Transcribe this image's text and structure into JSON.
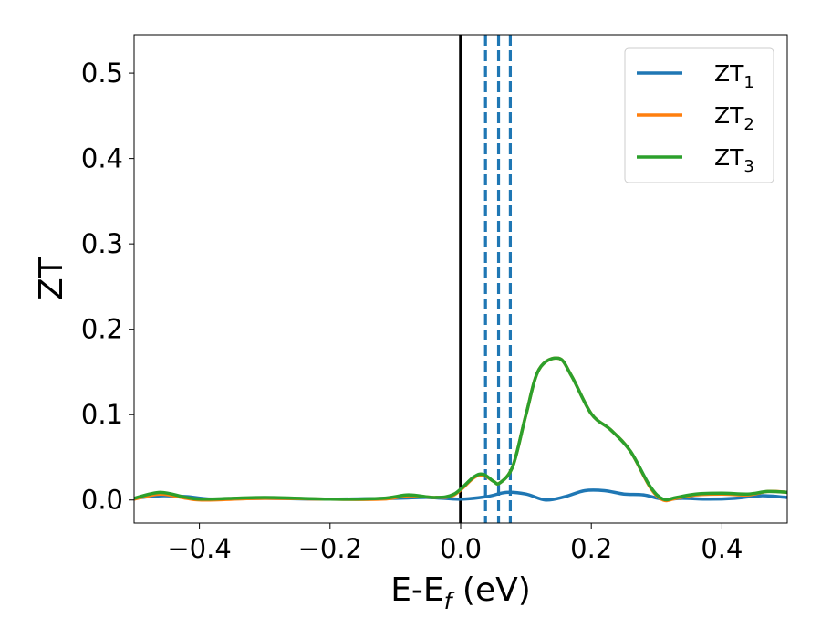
{
  "chart_data": {
    "type": "line",
    "title": "",
    "xlabel": {
      "main": "E-E",
      "sub": "f",
      "tail": " (eV)"
    },
    "ylabel": "ZT",
    "xlim": [
      -0.5,
      0.5
    ],
    "ylim": [
      -0.027,
      0.545
    ],
    "xticks": [
      -0.4,
      -0.2,
      0.0,
      0.2,
      0.4
    ],
    "xtick_labels": [
      "−0.4",
      "−0.2",
      "0.0",
      "0.2",
      "0.4"
    ],
    "yticks": [
      0.0,
      0.1,
      0.2,
      0.3,
      0.4,
      0.5
    ],
    "ytick_labels": [
      "0.0",
      "0.1",
      "0.2",
      "0.3",
      "0.4",
      "0.5"
    ],
    "grid": false,
    "legend_position": "top-right",
    "vertical_lines": [
      {
        "x": 0.0,
        "style": "solid",
        "color": "#000000"
      },
      {
        "x": 0.038,
        "style": "dashed",
        "color": "#1f77b4"
      },
      {
        "x": 0.058,
        "style": "dashed",
        "color": "#1f77b4"
      },
      {
        "x": 0.076,
        "style": "dashed",
        "color": "#1f77b4"
      }
    ],
    "series": [
      {
        "name": "ZT",
        "sub": "1",
        "color": "#1f77b4",
        "x": [
          -0.5,
          -0.46,
          -0.42,
          -0.38,
          -0.3,
          -0.2,
          -0.1,
          -0.05,
          0.0,
          0.04,
          0.07,
          0.1,
          0.13,
          0.16,
          0.19,
          0.22,
          0.25,
          0.28,
          0.31,
          0.34,
          0.38,
          0.42,
          0.46,
          0.5
        ],
        "y": [
          0.002,
          0.005,
          0.004,
          0.001,
          0.002,
          0.001,
          0.002,
          0.003,
          0.001,
          0.004,
          0.009,
          0.007,
          0.0,
          0.004,
          0.011,
          0.011,
          0.007,
          0.006,
          0.001,
          0.002,
          0.001,
          0.002,
          0.005,
          0.003
        ]
      },
      {
        "name": "ZT",
        "sub": "2",
        "color": "#ff7f0e",
        "x": [
          -0.5,
          -0.46,
          -0.42,
          -0.39,
          -0.3,
          -0.2,
          -0.12,
          -0.08,
          -0.04,
          -0.01,
          0.02,
          0.035,
          0.05,
          0.06,
          0.08,
          0.1,
          0.12,
          0.15,
          0.17,
          0.2,
          0.23,
          0.26,
          0.29,
          0.31,
          0.33,
          0.36,
          0.4,
          0.44,
          0.47,
          0.5
        ],
        "y": [
          0.001,
          0.007,
          0.002,
          0.0,
          0.002,
          0.001,
          0.001,
          0.005,
          0.003,
          0.006,
          0.026,
          0.029,
          0.022,
          0.02,
          0.04,
          0.1,
          0.153,
          0.166,
          0.145,
          0.101,
          0.082,
          0.057,
          0.015,
          0.0,
          0.002,
          0.006,
          0.007,
          0.006,
          0.01,
          0.009
        ]
      },
      {
        "name": "ZT",
        "sub": "3",
        "color": "#2ca02c",
        "x": [
          -0.5,
          -0.46,
          -0.42,
          -0.39,
          -0.3,
          -0.2,
          -0.12,
          -0.08,
          -0.04,
          -0.01,
          0.02,
          0.035,
          0.05,
          0.06,
          0.08,
          0.1,
          0.12,
          0.15,
          0.17,
          0.2,
          0.23,
          0.26,
          0.29,
          0.31,
          0.33,
          0.36,
          0.4,
          0.44,
          0.47,
          0.5
        ],
        "y": [
          0.002,
          0.009,
          0.003,
          0.001,
          0.003,
          0.001,
          0.002,
          0.006,
          0.003,
          0.007,
          0.027,
          0.03,
          0.022,
          0.02,
          0.04,
          0.1,
          0.153,
          0.166,
          0.145,
          0.101,
          0.082,
          0.057,
          0.016,
          0.001,
          0.003,
          0.007,
          0.008,
          0.007,
          0.01,
          0.009
        ]
      }
    ]
  }
}
